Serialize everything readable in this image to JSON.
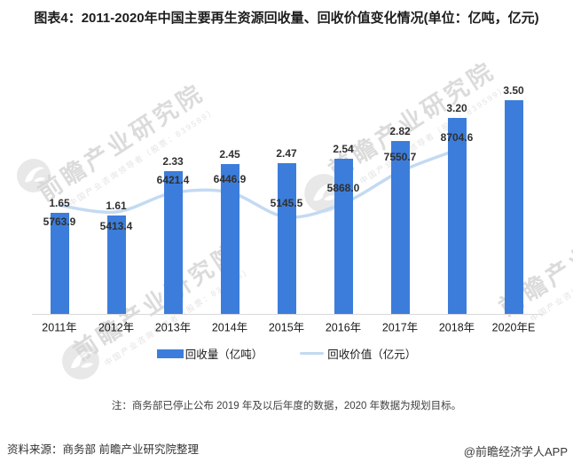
{
  "title": "图表4：2011-2020年中国主要再生资源回收量、回收价值变化情况(单位：亿吨，亿元)",
  "chart_data": {
    "type": "bar",
    "subtype": "bar+line combo",
    "categories": [
      "2011年",
      "2012年",
      "2013年",
      "2014年",
      "2015年",
      "2016年",
      "2017年",
      "2018年",
      "2020年E"
    ],
    "series": [
      {
        "name": "回收量（亿吨）",
        "type": "bar",
        "color": "#3C7DDB",
        "values": [
          1.65,
          1.61,
          2.33,
          2.45,
          2.47,
          2.54,
          2.82,
          3.2,
          3.5
        ],
        "labels": [
          "1.65",
          "1.61",
          "2.33",
          "2.45",
          "2.47",
          "2.54",
          "2.82",
          "3.20",
          "3.50"
        ]
      },
      {
        "name": "回收价值（亿元）",
        "type": "line",
        "color": "#C3DAF2",
        "values": [
          5763.9,
          5413.4,
          6421.4,
          6446.9,
          5145.5,
          5868.0,
          7550.7,
          8704.6
        ],
        "labels": [
          "5763.9",
          "5413.4",
          "6421.4",
          "6446.9",
          "5145.5",
          "5868.0",
          "7550.7",
          "8704.6"
        ]
      }
    ],
    "legend_position": "bottom",
    "grid": false,
    "ylim_bar": [
      0,
      3.5
    ],
    "ylim_line": [
      0,
      8704.6
    ]
  },
  "legend": {
    "bar_label": "回收量（亿吨）",
    "line_label": "回收价值（亿元）"
  },
  "note": "注：商务部已停止公布 2019 年及以后年度的数据，2020 年数据为规划目标。",
  "source": "资料来源：商务部 前瞻产业研究院整理",
  "credit": "@前瞻经济学人APP",
  "watermark": {
    "text": "前瞻产业研究院",
    "subtext": "中国产业咨询领导者（股票：839599）",
    "logo_icon": "qianzhan-bird-logo-icon"
  },
  "colors": {
    "bar": "#3C7DDB",
    "line": "#C3DAF2",
    "axis": "#d9d9d9"
  }
}
